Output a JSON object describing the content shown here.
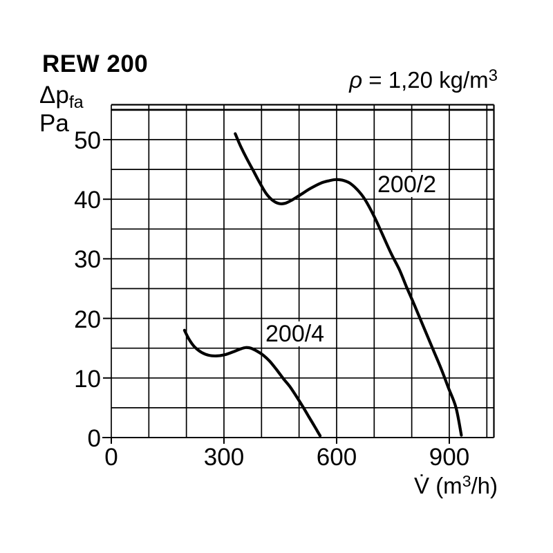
{
  "title": "REW 200",
  "y_axis_header": {
    "symbol": "Δp",
    "symbol_sub": "fa",
    "unit": "Pa"
  },
  "annotation": {
    "rho": "ρ",
    "body": " = 1,20 kg/m",
    "sup": "3"
  },
  "x_axis_title": {
    "prefix": "V̇ (m",
    "sup": "3",
    "suffix": "/h)"
  },
  "chart_data": {
    "type": "line",
    "title": "REW 200",
    "xlabel": "V̇ (m³/h)",
    "ylabel": "Δp fa (Pa)",
    "density_annotation": "ρ = 1,20 kg/m³",
    "grid": true,
    "xlim": [
      0,
      1020
    ],
    "ylim": [
      0,
      55.8
    ],
    "x_ticks": [
      0,
      300,
      600,
      900
    ],
    "y_ticks": [
      0,
      10,
      20,
      30,
      40,
      50
    ],
    "x_gridline_step": 100,
    "y_gridline_step": 5,
    "series": [
      {
        "name": "200/2",
        "points": [
          [
            330,
            51
          ],
          [
            345,
            48.8
          ],
          [
            360,
            46.9
          ],
          [
            378,
            44.8
          ],
          [
            395,
            42.8
          ],
          [
            412,
            41.0
          ],
          [
            428,
            39.9
          ],
          [
            445,
            39.3
          ],
          [
            462,
            39.3
          ],
          [
            482,
            39.9
          ],
          [
            505,
            40.8
          ],
          [
            530,
            41.8
          ],
          [
            558,
            42.7
          ],
          [
            580,
            43.1
          ],
          [
            597,
            43.3
          ],
          [
            615,
            43.2
          ],
          [
            635,
            42.7
          ],
          [
            655,
            41.6
          ],
          [
            675,
            40.0
          ],
          [
            700,
            37.1
          ],
          [
            722,
            34.1
          ],
          [
            745,
            30.9
          ],
          [
            767,
            28.2
          ],
          [
            786,
            25.3
          ],
          [
            804,
            22.7
          ],
          [
            822,
            20.0
          ],
          [
            840,
            17.3
          ],
          [
            860,
            14.3
          ],
          [
            878,
            11.6
          ],
          [
            898,
            8.3
          ],
          [
            918,
            5.0
          ],
          [
            932,
            0.4
          ]
        ]
      },
      {
        "name": "200/4",
        "points": [
          [
            195,
            18
          ],
          [
            207,
            16.5
          ],
          [
            222,
            15.2
          ],
          [
            240,
            14.3
          ],
          [
            260,
            13.8
          ],
          [
            280,
            13.7
          ],
          [
            302,
            13.9
          ],
          [
            325,
            14.4
          ],
          [
            345,
            14.9
          ],
          [
            358,
            15.1
          ],
          [
            372,
            15.0
          ],
          [
            388,
            14.5
          ],
          [
            405,
            13.8
          ],
          [
            422,
            12.8
          ],
          [
            440,
            11.4
          ],
          [
            458,
            9.9
          ],
          [
            475,
            8.6
          ],
          [
            492,
            7.0
          ],
          [
            508,
            5.4
          ],
          [
            525,
            3.6
          ],
          [
            542,
            1.8
          ],
          [
            556,
            0.3
          ]
        ]
      }
    ]
  }
}
